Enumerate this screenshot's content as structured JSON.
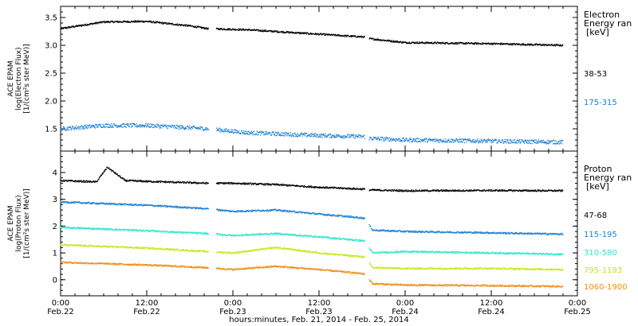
{
  "chart_data": [
    {
      "type": "scatter",
      "panel": "electron",
      "ylabel_lines": [
        "ACE EPAM",
        "log(Electron Flux)",
        "[1/(cm²s ster MeV)]"
      ],
      "ylim": [
        1.1,
        3.7
      ],
      "yticks": [
        1.5,
        2.0,
        2.5,
        3.0,
        3.5
      ],
      "ytick_labels": [
        "1.5",
        "2.0",
        "2.5",
        "3.0",
        "3.5"
      ],
      "legend_title_lines": [
        "Electron",
        "Energy ran",
        "[keV]"
      ],
      "series": [
        {
          "name": "38-53",
          "color": "#000000",
          "x": [
            0,
            6,
            12,
            18,
            20.5,
            26,
            36,
            42.3,
            43,
            48,
            60,
            70
          ],
          "y": [
            3.3,
            3.42,
            3.43,
            3.35,
            3.3,
            3.28,
            3.2,
            3.15,
            3.12,
            3.05,
            3.03,
            3.0
          ]
        },
        {
          "name": "175-315",
          "color": "#1a7fd6",
          "x": [
            0,
            6,
            12,
            18,
            20.5,
            26,
            36,
            42.3,
            43,
            48,
            60,
            70
          ],
          "y": [
            1.5,
            1.56,
            1.56,
            1.52,
            1.5,
            1.43,
            1.38,
            1.36,
            1.33,
            1.3,
            1.28,
            1.26
          ]
        }
      ]
    },
    {
      "type": "scatter",
      "panel": "proton",
      "ylabel_lines": [
        "ACE EPAM",
        "log(Proton Flux)",
        "[1/(cm²s ster MeV)]"
      ],
      "ylim": [
        -0.6,
        4.8
      ],
      "yticks": [
        0,
        1,
        2,
        3,
        4
      ],
      "ytick_labels": [
        "0",
        "1",
        "2",
        "3",
        "4"
      ],
      "legend_title_lines": [
        "Proton",
        "Energy ran",
        "[keV]"
      ],
      "series": [
        {
          "name": "47-68",
          "color": "#000000",
          "x": [
            0,
            5,
            6.5,
            8,
            9,
            12,
            20.5,
            24,
            30,
            36,
            42.3,
            43,
            48,
            60,
            70
          ],
          "y": [
            3.7,
            3.65,
            4.2,
            3.9,
            3.7,
            3.67,
            3.6,
            3.6,
            3.55,
            3.45,
            3.38,
            3.35,
            3.32,
            3.33,
            3.32
          ]
        },
        {
          "name": "115-195",
          "color": "#1a7fd6",
          "x": [
            0,
            12,
            20.5,
            24,
            30,
            36,
            42.3,
            43.5,
            48,
            60,
            70
          ],
          "y": [
            2.9,
            2.78,
            2.65,
            2.55,
            2.6,
            2.45,
            2.3,
            1.85,
            1.8,
            1.75,
            1.7
          ]
        },
        {
          "name": "310-580",
          "color": "#2ee6cc",
          "x": [
            0,
            12,
            20.5,
            24,
            30,
            36,
            42.3,
            43.5,
            48,
            60,
            70
          ],
          "y": [
            1.95,
            1.83,
            1.72,
            1.65,
            1.72,
            1.6,
            1.45,
            1.0,
            1.05,
            1.0,
            0.95
          ]
        },
        {
          "name": "795-1193",
          "color": "#c8e61e",
          "x": [
            0,
            12,
            20.5,
            24,
            30,
            36,
            42.3,
            43.5,
            48,
            60,
            70
          ],
          "y": [
            1.3,
            1.18,
            1.05,
            1.0,
            1.2,
            1.0,
            0.85,
            0.45,
            0.42,
            0.42,
            0.38
          ]
        },
        {
          "name": "1060-1900",
          "color": "#f08c14",
          "x": [
            0,
            12,
            20.5,
            24,
            30,
            36,
            42.3,
            43.5,
            48,
            60,
            70
          ],
          "y": [
            0.65,
            0.55,
            0.45,
            0.38,
            0.5,
            0.38,
            0.22,
            -0.15,
            -0.2,
            -0.22,
            -0.25
          ]
        }
      ]
    }
  ],
  "x_axis": {
    "xlim": [
      0,
      72
    ],
    "ticks": [
      {
        "x": 0,
        "label": "0:00",
        "date": "Feb.22"
      },
      {
        "x": 12,
        "label": "12:00",
        "date": "Feb.22"
      },
      {
        "x": 24,
        "label": "0:00",
        "date": "Feb.23"
      },
      {
        "x": 36,
        "label": "12:00",
        "date": "Feb.23"
      },
      {
        "x": 48,
        "label": "0:00",
        "date": "Feb.24"
      },
      {
        "x": 60,
        "label": "12:00",
        "date": "Feb.24"
      },
      {
        "x": 72,
        "label": "0:00",
        "date": "Feb.25"
      }
    ],
    "title": "hours:minutes, Feb. 21, 2014 - Feb. 25, 2014"
  }
}
